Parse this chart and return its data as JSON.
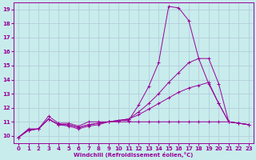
{
  "xlabel": "Windchill (Refroidissement éolien,°C)",
  "bg_color": "#c8ecec",
  "line_color": "#990099",
  "grid_color": "#b0c8d8",
  "xlim": [
    -0.5,
    23.5
  ],
  "ylim": [
    9.5,
    19.5
  ],
  "yticks": [
    10,
    11,
    12,
    13,
    14,
    15,
    16,
    17,
    18,
    19
  ],
  "xticks": [
    0,
    1,
    2,
    3,
    4,
    5,
    6,
    7,
    8,
    9,
    10,
    11,
    12,
    13,
    14,
    15,
    16,
    17,
    18,
    19,
    20,
    21,
    22,
    23
  ],
  "lines": [
    {
      "x": [
        0,
        1,
        2,
        3,
        4,
        5,
        6,
        7,
        8,
        9,
        10,
        11,
        12,
        13,
        14,
        15,
        16,
        17,
        18,
        19,
        20,
        21,
        22,
        23
      ],
      "y": [
        9.9,
        10.5,
        10.5,
        11.4,
        10.9,
        10.9,
        10.7,
        11.0,
        11.0,
        11.0,
        11.1,
        11.1,
        12.2,
        13.5,
        15.2,
        19.2,
        19.1,
        18.2,
        15.5,
        13.7,
        12.3,
        11.0,
        10.9,
        10.8
      ]
    },
    {
      "x": [
        0,
        1,
        2,
        3,
        4,
        5,
        6,
        7,
        8,
        9,
        10,
        11,
        12,
        13,
        14,
        15,
        16,
        17,
        18,
        19,
        20,
        21,
        22,
        23
      ],
      "y": [
        9.9,
        10.4,
        10.5,
        11.2,
        10.8,
        10.8,
        10.6,
        10.8,
        10.9,
        11.0,
        11.1,
        11.2,
        11.7,
        12.3,
        13.0,
        13.8,
        14.5,
        15.2,
        15.5,
        15.5,
        13.7,
        11.0,
        10.9,
        10.8
      ]
    },
    {
      "x": [
        0,
        1,
        2,
        3,
        4,
        5,
        6,
        7,
        8,
        9,
        10,
        11,
        12,
        13,
        14,
        15,
        16,
        17,
        18,
        19,
        20,
        21,
        22,
        23
      ],
      "y": [
        9.9,
        10.4,
        10.5,
        11.2,
        10.8,
        10.8,
        10.6,
        10.8,
        10.9,
        11.0,
        11.1,
        11.2,
        11.5,
        11.9,
        12.3,
        12.7,
        13.1,
        13.4,
        13.6,
        13.8,
        12.3,
        11.0,
        10.9,
        10.8
      ]
    },
    {
      "x": [
        0,
        1,
        2,
        3,
        4,
        5,
        6,
        7,
        8,
        9,
        10,
        11,
        12,
        13,
        14,
        15,
        16,
        17,
        18,
        19,
        20,
        21,
        22,
        23
      ],
      "y": [
        9.9,
        10.4,
        10.5,
        11.2,
        10.8,
        10.7,
        10.5,
        10.7,
        10.8,
        11.0,
        11.0,
        11.0,
        11.0,
        11.0,
        11.0,
        11.0,
        11.0,
        11.0,
        11.0,
        11.0,
        11.0,
        11.0,
        10.9,
        10.8
      ]
    }
  ]
}
